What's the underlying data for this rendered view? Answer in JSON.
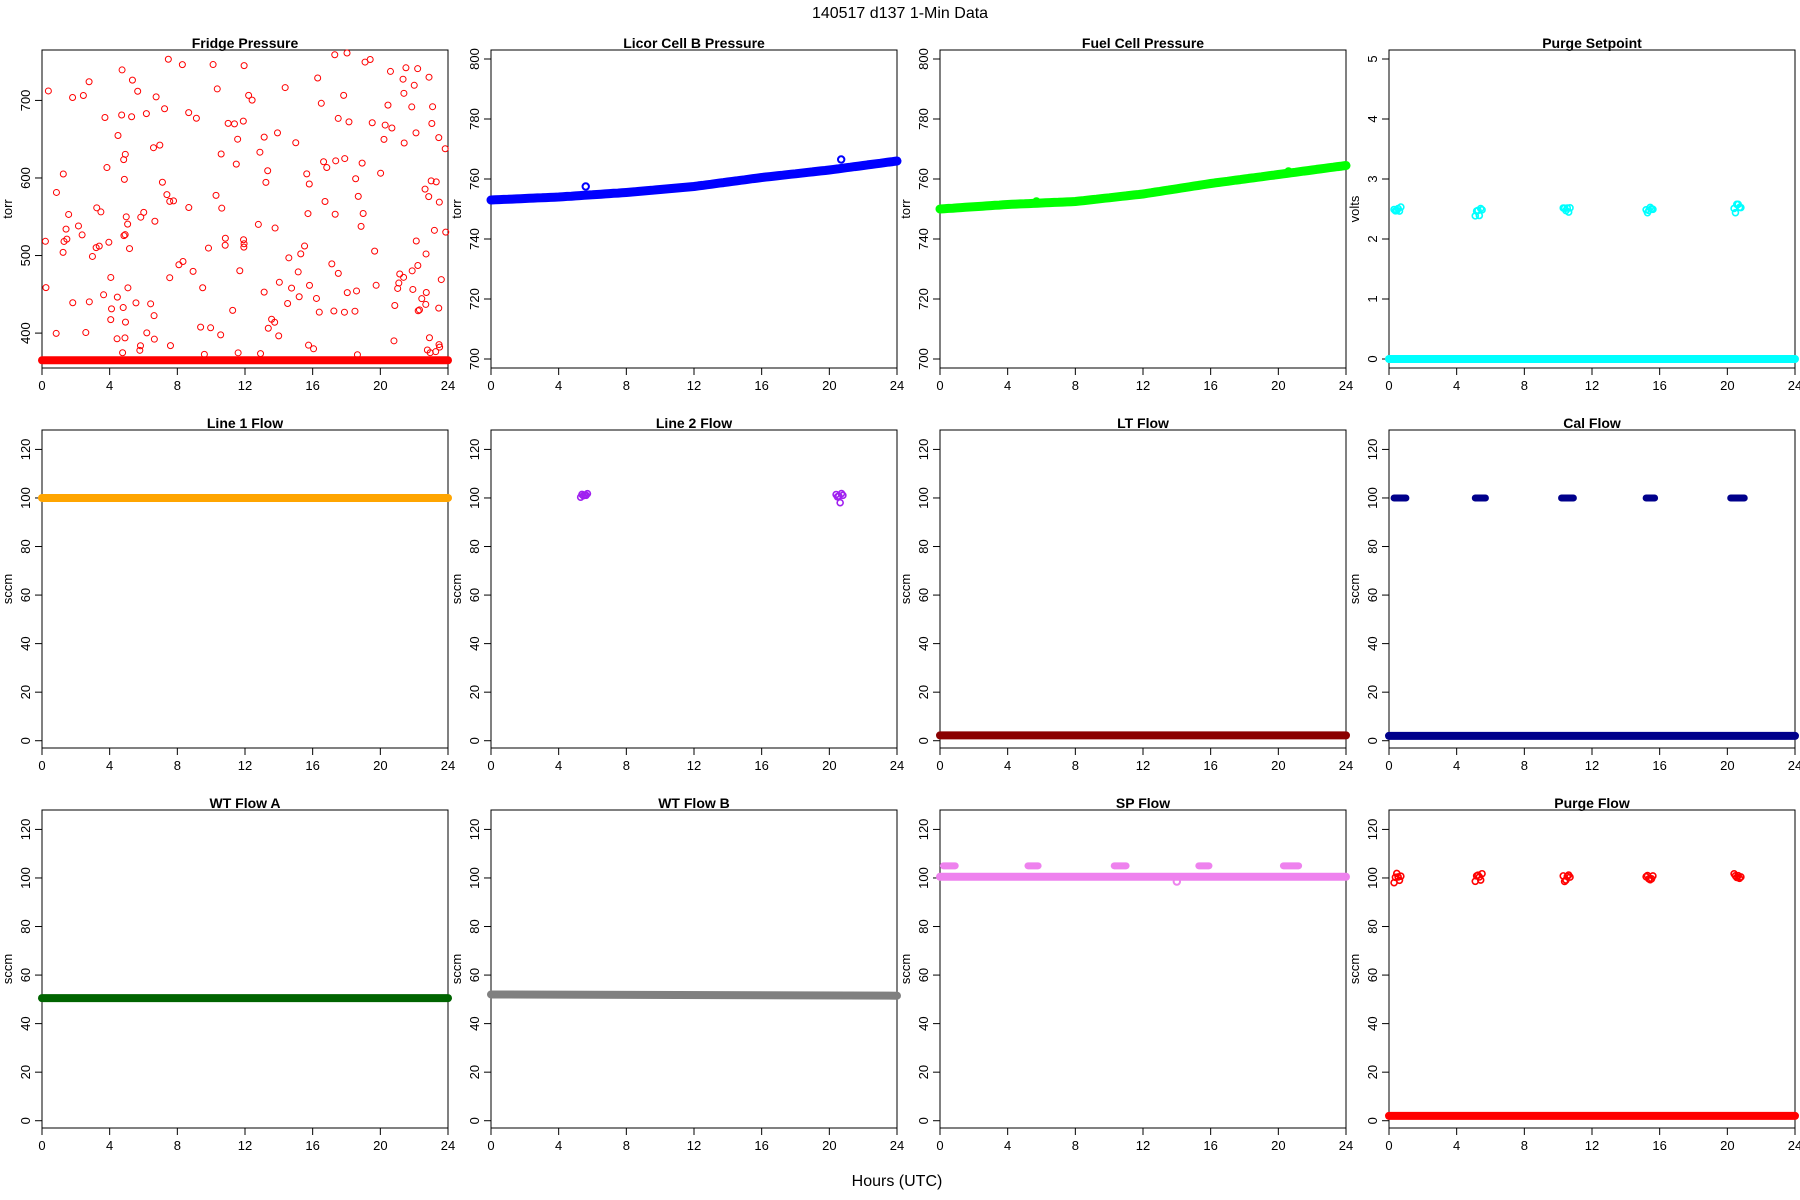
{
  "figure": {
    "title": "140517   d137   1-Min Data",
    "xlabel": "Hours (UTC)"
  },
  "chart_data": [
    {
      "type": "scatter",
      "title": "Fridge Pressure",
      "ylabel": "torr",
      "xlim": [
        0,
        24
      ],
      "ylim": [
        355,
        765
      ],
      "yticks": [
        400,
        500,
        600,
        700
      ],
      "xticks": [
        0,
        4,
        8,
        12,
        16,
        20,
        24
      ],
      "color": "#ff0000",
      "series": [
        {
          "kind": "baseline",
          "x": [
            0,
            24
          ],
          "y": [
            365,
            365
          ]
        },
        {
          "kind": "scatter-random",
          "count": 220,
          "yrange": [
            370,
            762
          ]
        }
      ]
    },
    {
      "type": "line",
      "title": "Licor Cell B Pressure",
      "ylabel": "torr",
      "xlim": [
        0,
        24
      ],
      "ylim": [
        697,
        803
      ],
      "yticks": [
        700,
        720,
        740,
        760,
        780,
        800
      ],
      "xticks": [
        0,
        4,
        8,
        12,
        16,
        20,
        24
      ],
      "color": "#0000ff",
      "series": [
        {
          "kind": "trend",
          "x": [
            0,
            4,
            8,
            12,
            16,
            20,
            24
          ],
          "y": [
            753,
            754,
            755.5,
            757.5,
            760.5,
            763,
            766
          ]
        },
        {
          "kind": "points",
          "x": [
            5.6,
            20.7
          ],
          "y": [
            757.5,
            766.5
          ]
        }
      ]
    },
    {
      "type": "line",
      "title": "Fuel Cell Pressure",
      "ylabel": "torr",
      "xlim": [
        0,
        24
      ],
      "ylim": [
        697,
        803
      ],
      "yticks": [
        700,
        720,
        740,
        760,
        780,
        800
      ],
      "xticks": [
        0,
        4,
        8,
        12,
        16,
        20,
        24
      ],
      "color": "#00ff00",
      "series": [
        {
          "kind": "trend",
          "x": [
            0,
            4,
            8,
            12,
            16,
            20,
            24
          ],
          "y": [
            750,
            751.5,
            752.5,
            755,
            758.5,
            761.5,
            764.5
          ]
        },
        {
          "kind": "points",
          "x": [
            5.7,
            20.6
          ],
          "y": [
            752.5,
            762.5
          ]
        }
      ]
    },
    {
      "type": "scatter",
      "title": "Purge Setpoint",
      "ylabel": "volts",
      "xlim": [
        0,
        24
      ],
      "ylim": [
        -0.15,
        5.15
      ],
      "yticks": [
        0,
        1,
        2,
        3,
        4,
        5
      ],
      "xticks": [
        0,
        4,
        8,
        12,
        16,
        20,
        24
      ],
      "color": "#00ffff",
      "series": [
        {
          "kind": "baseline",
          "x": [
            0,
            24
          ],
          "y": [
            0,
            0
          ]
        },
        {
          "kind": "clusters",
          "x": [
            0.5,
            5.3,
            10.5,
            15.4,
            20.6
          ],
          "y": [
            2.5,
            2.45,
            2.5,
            2.45,
            2.5
          ]
        }
      ]
    },
    {
      "type": "line",
      "title": "Line 1 Flow",
      "ylabel": "sccm",
      "xlim": [
        0,
        24
      ],
      "ylim": [
        -3,
        128
      ],
      "yticks": [
        0,
        20,
        40,
        60,
        80,
        100,
        120
      ],
      "xticks": [
        0,
        4,
        8,
        12,
        16,
        20,
        24
      ],
      "color": "#ffa500",
      "series": [
        {
          "kind": "baseline",
          "x": [
            0,
            24
          ],
          "y": [
            100,
            100
          ]
        }
      ]
    },
    {
      "type": "scatter",
      "title": "Line 2 Flow",
      "ylabel": "sccm",
      "xlim": [
        0,
        24
      ],
      "ylim": [
        -3,
        128
      ],
      "yticks": [
        0,
        20,
        40,
        60,
        80,
        100,
        120
      ],
      "xticks": [
        0,
        4,
        8,
        12,
        16,
        20,
        24
      ],
      "color": "#a020f0",
      "series": [
        {
          "kind": "clusters",
          "x": [
            5.5,
            20.6
          ],
          "y": [
            100,
            100
          ]
        }
      ]
    },
    {
      "type": "line",
      "title": "LT Flow",
      "ylabel": "sccm",
      "xlim": [
        0,
        24
      ],
      "ylim": [
        -3,
        128
      ],
      "yticks": [
        0,
        20,
        40,
        60,
        80,
        100,
        120
      ],
      "xticks": [
        0,
        4,
        8,
        12,
        16,
        20,
        24
      ],
      "color": "#8b0000",
      "series": [
        {
          "kind": "baseline",
          "x": [
            0,
            24
          ],
          "y": [
            2.2,
            2.2
          ]
        }
      ]
    },
    {
      "type": "scatter",
      "title": "Cal Flow",
      "ylabel": "sccm",
      "xlim": [
        0,
        24
      ],
      "ylim": [
        -3,
        128
      ],
      "yticks": [
        0,
        20,
        40,
        60,
        80,
        100,
        120
      ],
      "xticks": [
        0,
        4,
        8,
        12,
        16,
        20,
        24
      ],
      "color": "#00008b",
      "series": [
        {
          "kind": "baseline",
          "x": [
            0,
            24
          ],
          "y": [
            2,
            2
          ]
        },
        {
          "kind": "segments",
          "x": [
            [
              0.3,
              1.0
            ],
            [
              5.1,
              5.7
            ],
            [
              10.2,
              10.9
            ],
            [
              15.2,
              15.7
            ],
            [
              20.2,
              21.0
            ]
          ],
          "y": [
            100,
            100,
            100,
            100,
            100
          ]
        }
      ]
    },
    {
      "type": "line",
      "title": "WT Flow A",
      "ylabel": "sccm",
      "xlim": [
        0,
        24
      ],
      "ylim": [
        -3,
        128
      ],
      "yticks": [
        0,
        20,
        40,
        60,
        80,
        100,
        120
      ],
      "xticks": [
        0,
        4,
        8,
        12,
        16,
        20,
        24
      ],
      "color": "#006400",
      "series": [
        {
          "kind": "baseline",
          "x": [
            0,
            24
          ],
          "y": [
            50.5,
            50.5
          ]
        }
      ]
    },
    {
      "type": "line",
      "title": "WT Flow B",
      "ylabel": "sccm",
      "xlim": [
        0,
        24
      ],
      "ylim": [
        -3,
        128
      ],
      "yticks": [
        0,
        20,
        40,
        60,
        80,
        100,
        120
      ],
      "xticks": [
        0,
        4,
        8,
        12,
        16,
        20,
        24
      ],
      "color": "#808080",
      "series": [
        {
          "kind": "baseline",
          "x": [
            0,
            24
          ],
          "y": [
            52,
            51.5
          ]
        }
      ]
    },
    {
      "type": "line",
      "title": "SP Flow",
      "ylabel": "sccm",
      "xlim": [
        0,
        24
      ],
      "ylim": [
        -3,
        128
      ],
      "yticks": [
        0,
        20,
        40,
        60,
        80,
        100,
        120
      ],
      "xticks": [
        0,
        4,
        8,
        12,
        16,
        20,
        24
      ],
      "color": "#ee82ee",
      "series": [
        {
          "kind": "baseline",
          "x": [
            0,
            24
          ],
          "y": [
            100.5,
            100.5
          ]
        },
        {
          "kind": "segments",
          "x": [
            [
              0.2,
              0.9
            ],
            [
              5.2,
              5.8
            ],
            [
              10.3,
              11.0
            ],
            [
              15.3,
              15.9
            ],
            [
              20.3,
              21.2
            ]
          ],
          "y": [
            105,
            105,
            105,
            105,
            105
          ]
        },
        {
          "kind": "points",
          "x": [
            14.0
          ],
          "y": [
            98.5
          ]
        }
      ]
    },
    {
      "type": "scatter",
      "title": "Purge Flow",
      "ylabel": "sccm",
      "xlim": [
        0,
        24
      ],
      "ylim": [
        -3,
        128
      ],
      "yticks": [
        0,
        20,
        40,
        60,
        80,
        100,
        120
      ],
      "xticks": [
        0,
        4,
        8,
        12,
        16,
        20,
        24
      ],
      "color": "#ff0000",
      "series": [
        {
          "kind": "baseline",
          "x": [
            0,
            24
          ],
          "y": [
            2,
            2
          ]
        },
        {
          "kind": "clusters",
          "x": [
            0.5,
            5.3,
            10.5,
            15.4,
            20.6
          ],
          "y": [
            100,
            100,
            100,
            100,
            100
          ]
        }
      ]
    }
  ]
}
